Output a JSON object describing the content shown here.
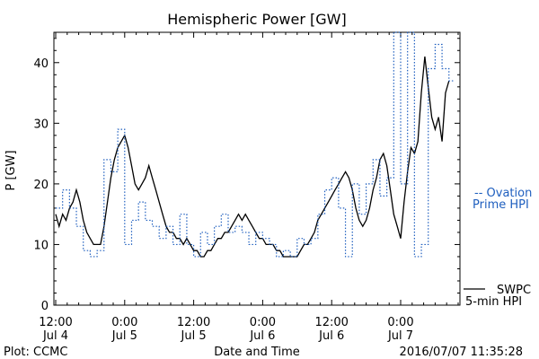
{
  "chart_data": {
    "type": "line",
    "title": "Hemispheric Power [GW]",
    "ylabel": "P [GW]",
    "xlabel": "Date and Time",
    "ylim": [
      0,
      45
    ],
    "yticks": [
      0,
      10,
      20,
      30,
      40
    ],
    "x_unit": "hours",
    "xlim": [
      0,
      72
    ],
    "xticks": [
      {
        "x": 0,
        "line1": "12:00",
        "line2": "Jul 4"
      },
      {
        "x": 12,
        "line1": "0:00",
        "line2": "Jul 5"
      },
      {
        "x": 24,
        "line1": "12:00",
        "line2": "Jul 5"
      },
      {
        "x": 36,
        "line1": "0:00",
        "line2": "Jul 6"
      },
      {
        "x": 48,
        "line1": "12:00",
        "line2": "Jul 6"
      },
      {
        "x": 60,
        "line1": "0:00",
        "line2": "Jul 7"
      }
    ],
    "series": [
      {
        "name_lines": [
          "SWPC",
          "5-min HPI"
        ],
        "color": "#000000",
        "style": "solid",
        "points": [
          [
            0.0,
            15
          ],
          [
            0.6,
            13
          ],
          [
            1.2,
            15
          ],
          [
            1.8,
            14
          ],
          [
            2.4,
            16
          ],
          [
            3.0,
            17
          ],
          [
            3.6,
            19
          ],
          [
            4.2,
            17
          ],
          [
            4.8,
            14
          ],
          [
            5.4,
            12
          ],
          [
            6.0,
            11
          ],
          [
            6.6,
            10
          ],
          [
            7.2,
            10
          ],
          [
            7.8,
            10
          ],
          [
            8.4,
            13
          ],
          [
            9.0,
            17
          ],
          [
            9.6,
            21
          ],
          [
            10.2,
            24
          ],
          [
            10.8,
            26
          ],
          [
            11.4,
            27
          ],
          [
            12.0,
            28
          ],
          [
            12.6,
            26
          ],
          [
            13.2,
            23
          ],
          [
            13.8,
            20
          ],
          [
            14.4,
            19
          ],
          [
            15.0,
            20
          ],
          [
            15.6,
            21
          ],
          [
            16.2,
            23
          ],
          [
            16.8,
            21
          ],
          [
            17.4,
            19
          ],
          [
            18.0,
            17
          ],
          [
            18.6,
            15
          ],
          [
            19.2,
            13
          ],
          [
            19.8,
            12
          ],
          [
            20.4,
            12
          ],
          [
            21.0,
            11
          ],
          [
            21.6,
            11
          ],
          [
            22.2,
            10
          ],
          [
            22.8,
            11
          ],
          [
            23.4,
            10
          ],
          [
            24.0,
            9
          ],
          [
            24.6,
            9
          ],
          [
            25.2,
            8
          ],
          [
            25.8,
            8
          ],
          [
            26.4,
            9
          ],
          [
            27.0,
            9
          ],
          [
            27.6,
            10
          ],
          [
            28.2,
            11
          ],
          [
            28.8,
            11
          ],
          [
            29.4,
            12
          ],
          [
            30.0,
            12
          ],
          [
            30.6,
            13
          ],
          [
            31.2,
            14
          ],
          [
            31.8,
            15
          ],
          [
            32.4,
            14
          ],
          [
            33.0,
            15
          ],
          [
            33.6,
            14
          ],
          [
            34.2,
            13
          ],
          [
            34.8,
            12
          ],
          [
            35.4,
            11
          ],
          [
            36.0,
            11
          ],
          [
            36.6,
            10
          ],
          [
            37.2,
            10
          ],
          [
            37.8,
            10
          ],
          [
            38.4,
            9
          ],
          [
            39.0,
            9
          ],
          [
            39.6,
            8
          ],
          [
            40.2,
            8
          ],
          [
            40.8,
            8
          ],
          [
            41.4,
            8
          ],
          [
            42.0,
            8
          ],
          [
            42.6,
            9
          ],
          [
            43.2,
            10
          ],
          [
            43.8,
            10
          ],
          [
            44.4,
            11
          ],
          [
            45.0,
            12
          ],
          [
            45.6,
            14
          ],
          [
            46.2,
            15
          ],
          [
            46.8,
            16
          ],
          [
            47.4,
            17
          ],
          [
            48.0,
            18
          ],
          [
            48.6,
            19
          ],
          [
            49.2,
            20
          ],
          [
            49.8,
            21
          ],
          [
            50.4,
            22
          ],
          [
            51.0,
            21
          ],
          [
            51.6,
            19
          ],
          [
            52.2,
            16
          ],
          [
            52.8,
            14
          ],
          [
            53.4,
            13
          ],
          [
            54.0,
            14
          ],
          [
            54.6,
            16
          ],
          [
            55.2,
            19
          ],
          [
            55.8,
            21
          ],
          [
            56.4,
            24
          ],
          [
            57.0,
            25
          ],
          [
            57.6,
            23
          ],
          [
            58.2,
            19
          ],
          [
            58.8,
            15
          ],
          [
            59.4,
            13
          ],
          [
            60.0,
            11
          ],
          [
            60.6,
            17
          ],
          [
            61.2,
            22
          ],
          [
            61.8,
            26
          ],
          [
            62.4,
            25
          ],
          [
            63.0,
            27
          ],
          [
            63.6,
            35
          ],
          [
            64.2,
            41
          ],
          [
            64.8,
            36
          ],
          [
            65.4,
            31
          ],
          [
            66.0,
            29
          ],
          [
            66.6,
            31
          ],
          [
            67.2,
            27
          ],
          [
            67.8,
            35
          ],
          [
            68.4,
            37
          ]
        ]
      },
      {
        "name_lines": [
          "-- Ovation",
          "Prime HPI"
        ],
        "color": "#1f5fbf",
        "style": "dotted",
        "points": [
          [
            0.0,
            16
          ],
          [
            1.2,
            19
          ],
          [
            2.4,
            16
          ],
          [
            3.6,
            13
          ],
          [
            4.8,
            9
          ],
          [
            6.0,
            8
          ],
          [
            7.2,
            9
          ],
          [
            8.4,
            24
          ],
          [
            9.6,
            22
          ],
          [
            10.8,
            29
          ],
          [
            12.0,
            10
          ],
          [
            13.2,
            14
          ],
          [
            14.4,
            17
          ],
          [
            15.6,
            14
          ],
          [
            16.8,
            13
          ],
          [
            18.0,
            11
          ],
          [
            19.2,
            13
          ],
          [
            20.4,
            10
          ],
          [
            21.6,
            15
          ],
          [
            22.8,
            10
          ],
          [
            24.0,
            8
          ],
          [
            25.2,
            12
          ],
          [
            26.4,
            10
          ],
          [
            27.6,
            13
          ],
          [
            28.8,
            15
          ],
          [
            30.0,
            12
          ],
          [
            31.2,
            13
          ],
          [
            32.4,
            12
          ],
          [
            33.6,
            10
          ],
          [
            34.8,
            12
          ],
          [
            36.0,
            11
          ],
          [
            37.2,
            10
          ],
          [
            38.4,
            8
          ],
          [
            39.6,
            9
          ],
          [
            40.8,
            8
          ],
          [
            42.0,
            11
          ],
          [
            43.2,
            10
          ],
          [
            44.4,
            11
          ],
          [
            45.6,
            15
          ],
          [
            46.8,
            19
          ],
          [
            48.0,
            21
          ],
          [
            49.2,
            16
          ],
          [
            50.4,
            8
          ],
          [
            51.6,
            20
          ],
          [
            52.8,
            15
          ],
          [
            54.0,
            20
          ],
          [
            55.2,
            24
          ],
          [
            56.4,
            18
          ],
          [
            57.6,
            21
          ],
          [
            58.8,
            45
          ],
          [
            60.0,
            20
          ],
          [
            61.2,
            45
          ],
          [
            62.4,
            8
          ],
          [
            63.6,
            10
          ],
          [
            64.8,
            39
          ],
          [
            66.0,
            43
          ],
          [
            67.2,
            39
          ],
          [
            68.4,
            37
          ]
        ]
      }
    ]
  },
  "footer": {
    "left": "Plot: CCMC",
    "right": "2016/07/07 11:35:28"
  }
}
